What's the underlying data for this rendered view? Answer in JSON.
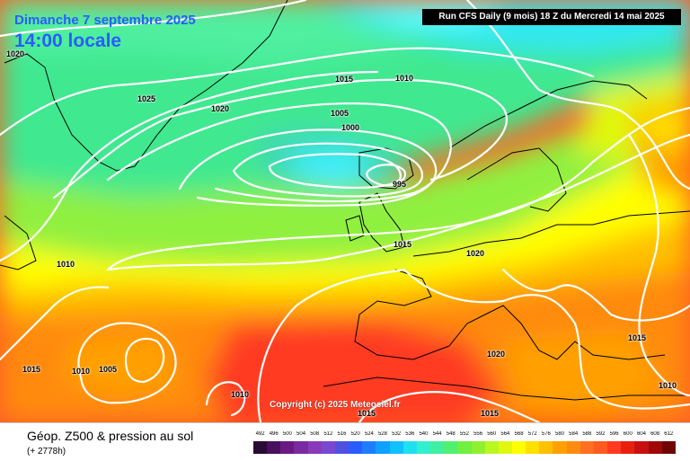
{
  "header": {
    "date": "Dimanche 7 septembre 2025",
    "time": "14:00 locale",
    "run": "Run CFS Daily (9 mois) 18 Z du Mercredi 14 mai 2025"
  },
  "copyright": "Copyright (c) 2025 Meteociel.fr",
  "footer": {
    "title": "Géop. Z500 & pression au sol",
    "subtitle": "(+ 2778h)"
  },
  "isobar_labels": [
    {
      "text": "1020"
    },
    {
      "text": "1025"
    },
    {
      "text": "1020"
    },
    {
      "text": "1015"
    },
    {
      "text": "1010"
    },
    {
      "text": "1005"
    },
    {
      "text": "1000"
    },
    {
      "text": "995"
    },
    {
      "text": "1015"
    },
    {
      "text": "1020"
    },
    {
      "text": "1010"
    },
    {
      "text": "1015"
    },
    {
      "text": "1010"
    },
    {
      "text": "1005"
    },
    {
      "text": "1010"
    },
    {
      "text": "1020"
    },
    {
      "text": "1015"
    },
    {
      "text": "1015"
    },
    {
      "text": "1015"
    },
    {
      "text": "1010"
    }
  ],
  "legend": {
    "labels": [
      "492",
      "496",
      "500",
      "504",
      "508",
      "512",
      "516",
      "520",
      "524",
      "528",
      "532",
      "536",
      "540",
      "544",
      "548",
      "552",
      "556",
      "560",
      "564",
      "568",
      "572",
      "576",
      "580",
      "584",
      "588",
      "592",
      "596",
      "600",
      "604",
      "608",
      "612"
    ],
    "colors": [
      "#2a0a36",
      "#4a0f5e",
      "#6a1a80",
      "#7a2aa0",
      "#8a3ab8",
      "#7a48d0",
      "#5050e0",
      "#2a5cff",
      "#1e7dff",
      "#10a0ff",
      "#10c0ff",
      "#20e0f0",
      "#30f0d0",
      "#40f0a0",
      "#50f070",
      "#70f040",
      "#90f030",
      "#b8f820",
      "#e0f810",
      "#ffff00",
      "#ffe000",
      "#ffc000",
      "#ffa000",
      "#ff8a10",
      "#ff7020",
      "#ff5a20",
      "#ff3a20",
      "#e82010",
      "#c81010",
      "#a00808",
      "#700404"
    ]
  }
}
